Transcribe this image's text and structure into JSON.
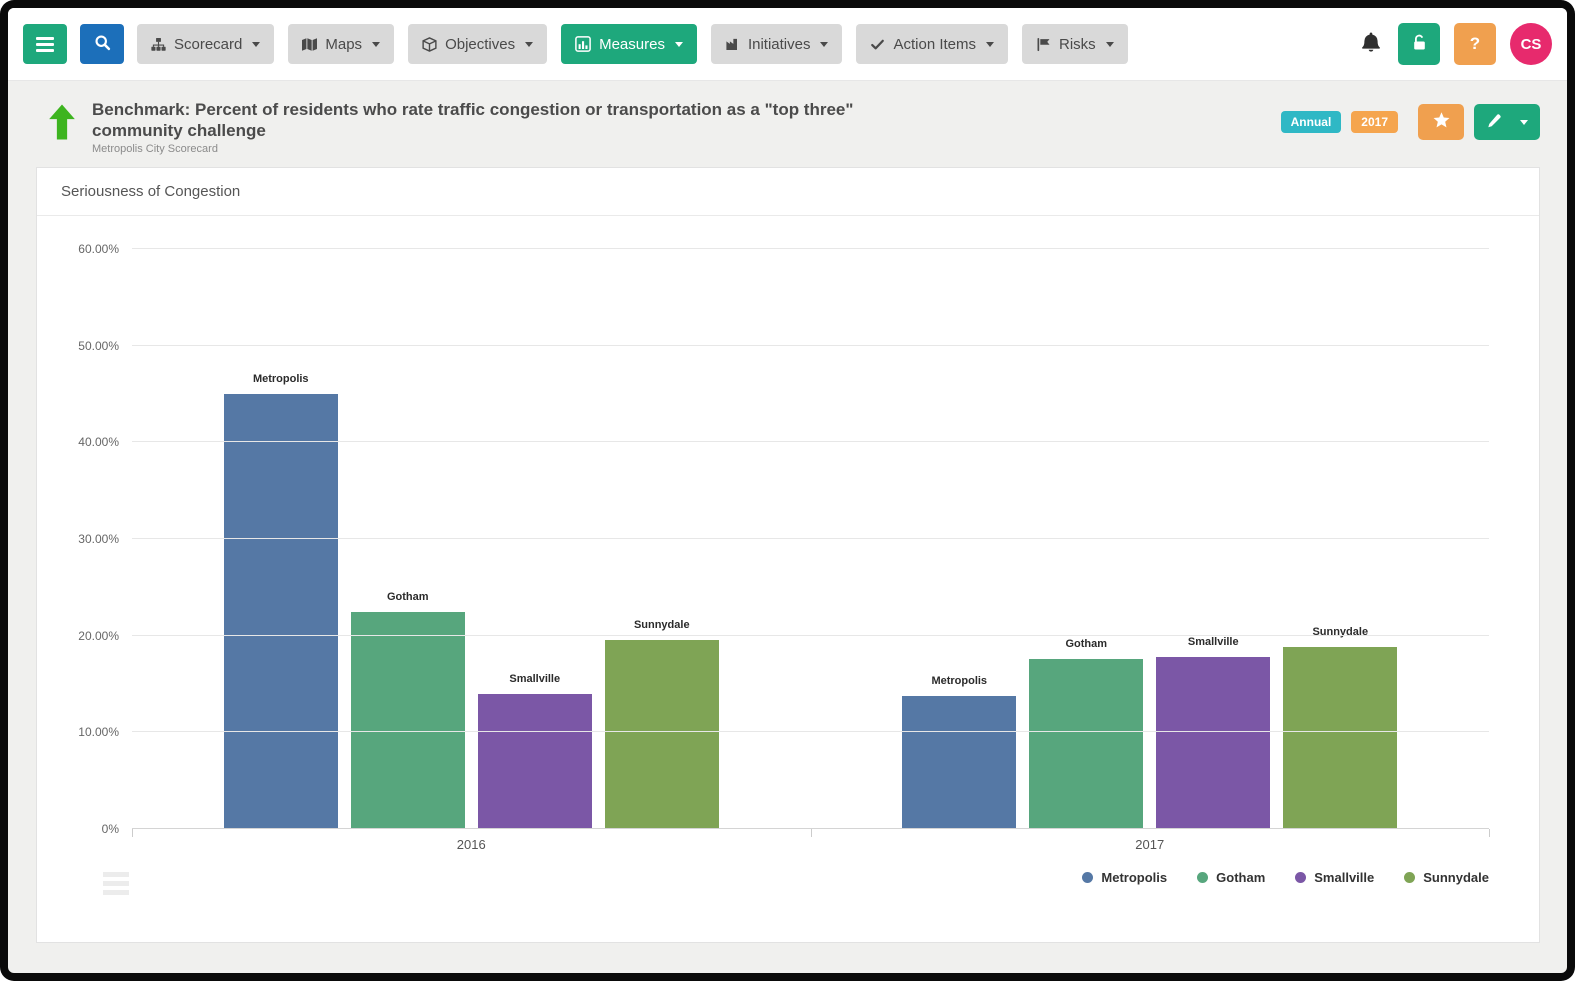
{
  "navbar": {
    "items": [
      {
        "label": "Scorecard",
        "icon": "sitemap-icon",
        "active": false
      },
      {
        "label": "Maps",
        "icon": "map-icon",
        "active": false
      },
      {
        "label": "Objectives",
        "icon": "cube-icon",
        "active": false
      },
      {
        "label": "Measures",
        "icon": "bar-chart-icon",
        "active": true
      },
      {
        "label": "Initiatives",
        "icon": "industry-icon",
        "active": false
      },
      {
        "label": "Action Items",
        "icon": "check-icon",
        "active": false
      },
      {
        "label": "Risks",
        "icon": "flag-icon",
        "active": false
      }
    ],
    "right": {
      "help_label": "?",
      "avatar_initials": "CS"
    }
  },
  "header": {
    "title": "Benchmark: Percent of residents who rate traffic congestion or transportation as a \"top three\" community challenge",
    "subtitle": "Metropolis City Scorecard",
    "badges": {
      "period": "Annual",
      "year": "2017"
    },
    "colors": {
      "period_badge": "#2fb8c5",
      "year_badge": "#f5a54e",
      "star_button": "#f0a04f",
      "edit_button": "#1ea87c",
      "status_arrow": "#3db41f"
    }
  },
  "chart_card": {
    "title": "Seriousness of Congestion"
  },
  "chart_data": {
    "type": "bar",
    "title": "Seriousness of Congestion",
    "categories": [
      "2016",
      "2017"
    ],
    "series": [
      {
        "name": "Metropolis",
        "color": "#5578a5",
        "values": [
          45.0,
          13.8
        ]
      },
      {
        "name": "Gotham",
        "color": "#57a67d",
        "values": [
          22.4,
          17.6
        ]
      },
      {
        "name": "Smallville",
        "color": "#7b57a6",
        "values": [
          14.0,
          17.8
        ]
      },
      {
        "name": "Sunnydale",
        "color": "#7fa455",
        "values": [
          19.6,
          18.8
        ]
      }
    ],
    "ylim": [
      0,
      60
    ],
    "yticks": [
      "60.00%",
      "50.00%",
      "40.00%",
      "30.00%",
      "20.00%",
      "10.00%",
      "0%"
    ],
    "grid": true,
    "legend_position": "bottom-right",
    "bar_value_labels": "series-name-above-bar"
  }
}
